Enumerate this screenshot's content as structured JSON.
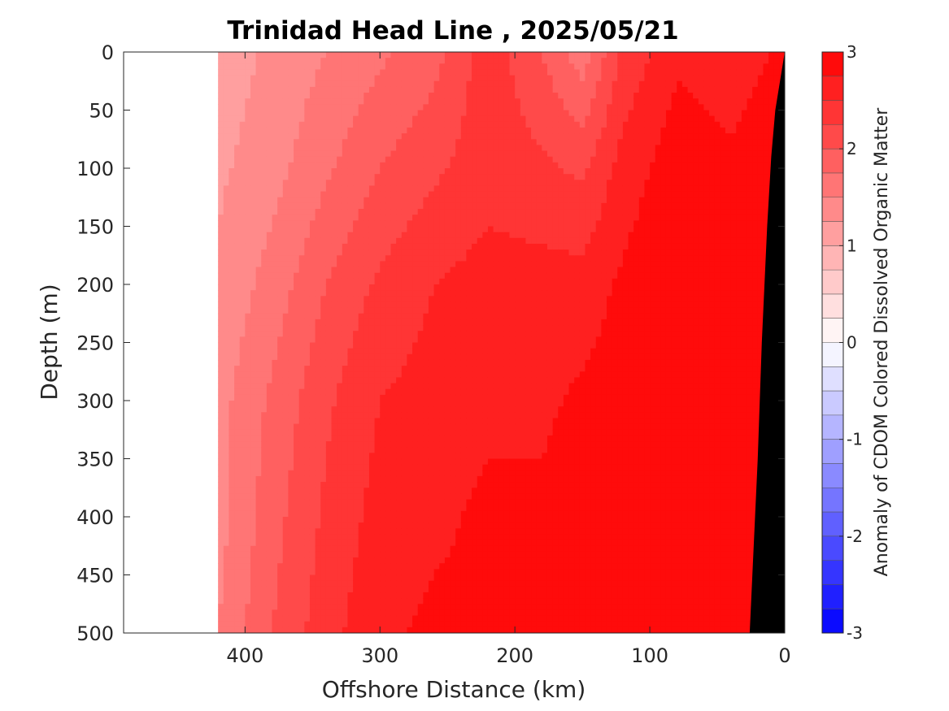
{
  "chart_data": {
    "type": "heatmap",
    "title": "Trinidad Head Line , 2025/05/21",
    "xlabel": "Offshore Distance (km)",
    "ylabel": "Depth (m)",
    "x_reversed": true,
    "y_reversed": true,
    "xlim": [
      490,
      0
    ],
    "ylim": [
      0,
      500
    ],
    "x_ticks": [
      400,
      300,
      200,
      100,
      0
    ],
    "y_ticks": [
      0,
      50,
      100,
      150,
      200,
      250,
      300,
      350,
      400,
      450,
      500
    ],
    "data_extent_x": [
      420,
      0
    ],
    "grid": false,
    "colorbar": {
      "label": "Anomaly of CDOM Colored Dissolved Organic Matter",
      "ticks": [
        3,
        2,
        1,
        0,
        -1,
        -2,
        -3
      ],
      "range": [
        -3,
        3
      ],
      "levels": 24,
      "colormap": "blue-white-red",
      "placement": "right"
    },
    "columns": [
      {
        "x": 420,
        "profile": [
          [
            0,
            1.1
          ],
          [
            100,
            1.2
          ],
          [
            200,
            1.3
          ],
          [
            300,
            1.4
          ],
          [
            400,
            1.4
          ],
          [
            500,
            1.5
          ]
        ]
      },
      {
        "x": 380,
        "profile": [
          [
            0,
            1.3
          ],
          [
            100,
            1.4
          ],
          [
            200,
            1.6
          ],
          [
            300,
            1.8
          ],
          [
            400,
            1.9
          ],
          [
            500,
            2.0
          ]
        ]
      },
      {
        "x": 340,
        "profile": [
          [
            0,
            1.5
          ],
          [
            100,
            1.7
          ],
          [
            200,
            2.0
          ],
          [
            300,
            2.2
          ],
          [
            400,
            2.3
          ],
          [
            500,
            2.4
          ]
        ]
      },
      {
        "x": 300,
        "profile": [
          [
            0,
            1.7
          ],
          [
            100,
            2.0
          ],
          [
            200,
            2.3
          ],
          [
            300,
            2.5
          ],
          [
            400,
            2.6
          ],
          [
            500,
            2.7
          ]
        ]
      },
      {
        "x": 260,
        "profile": [
          [
            0,
            1.9
          ],
          [
            100,
            2.2
          ],
          [
            200,
            2.5
          ],
          [
            300,
            2.6
          ],
          [
            400,
            2.7
          ],
          [
            500,
            2.8
          ]
        ]
      },
      {
        "x": 220,
        "profile": [
          [
            0,
            2.4
          ],
          [
            100,
            2.4
          ],
          [
            200,
            2.6
          ],
          [
            300,
            2.7
          ],
          [
            400,
            2.8
          ],
          [
            500,
            2.8
          ]
        ]
      },
      {
        "x": 180,
        "profile": [
          [
            0,
            2.0
          ],
          [
            100,
            2.3
          ],
          [
            200,
            2.6
          ],
          [
            300,
            2.7
          ],
          [
            400,
            2.8
          ],
          [
            500,
            2.9
          ]
        ]
      },
      {
        "x": 150,
        "profile": [
          [
            0,
            1.6
          ],
          [
            100,
            2.2
          ],
          [
            200,
            2.6
          ],
          [
            300,
            2.8
          ],
          [
            400,
            2.9
          ],
          [
            500,
            2.9
          ]
        ]
      },
      {
        "x": 120,
        "profile": [
          [
            0,
            2.3
          ],
          [
            100,
            2.6
          ],
          [
            200,
            2.8
          ],
          [
            300,
            2.9
          ],
          [
            400,
            2.9
          ],
          [
            500,
            3.0
          ]
        ]
      },
      {
        "x": 80,
        "profile": [
          [
            0,
            2.7
          ],
          [
            100,
            2.9
          ],
          [
            200,
            3.0
          ],
          [
            300,
            3.0
          ],
          [
            400,
            3.0
          ],
          [
            500,
            3.0
          ]
        ]
      },
      {
        "x": 40,
        "profile": [
          [
            0,
            2.6
          ],
          [
            100,
            2.8
          ],
          [
            200,
            3.0
          ],
          [
            300,
            3.0
          ],
          [
            400,
            3.0
          ],
          [
            500,
            3.0
          ]
        ]
      },
      {
        "x": 0,
        "profile": [
          [
            0,
            2.8
          ],
          [
            100,
            3.0
          ],
          [
            200,
            3.0
          ],
          [
            300,
            3.0
          ],
          [
            400,
            3.0
          ],
          [
            500,
            3.0
          ]
        ]
      }
    ],
    "seafloor": [
      [
        0,
        0
      ],
      [
        7,
        50
      ],
      [
        10,
        90
      ],
      [
        13,
        150
      ],
      [
        17,
        250
      ],
      [
        20,
        350
      ],
      [
        24,
        450
      ],
      [
        26,
        500
      ]
    ],
    "seafloor_color": "#000000"
  }
}
